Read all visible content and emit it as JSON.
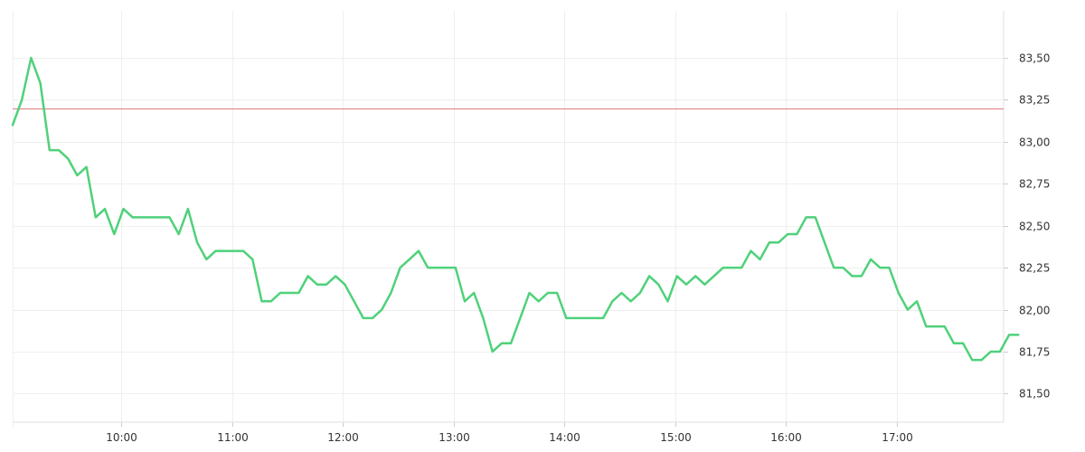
{
  "chart_data": {
    "type": "line",
    "x_labels": [
      "10:00",
      "11:00",
      "12:00",
      "13:00",
      "14:00",
      "15:00",
      "16:00",
      "17:00"
    ],
    "x_label_minutes": [
      600,
      660,
      720,
      780,
      840,
      900,
      960,
      1020
    ],
    "xlim_minutes": [
      541,
      1078
    ],
    "y_ticks": [
      81.5,
      81.75,
      82.0,
      82.25,
      82.5,
      82.75,
      83.0,
      83.25,
      83.5
    ],
    "y_tick_labels": [
      "81,50",
      "81,75",
      "82,00",
      "82,25",
      "82,50",
      "82,75",
      "83,00",
      "83,25",
      "83,50"
    ],
    "ylim": [
      81.33,
      83.78
    ],
    "reference_line": {
      "value": 83.2,
      "color": "#e07a80"
    },
    "grid": true,
    "series": [
      {
        "color": "#4fd17a",
        "points": [
          [
            541,
            83.1
          ],
          [
            546,
            83.25
          ],
          [
            551,
            83.5
          ],
          [
            556,
            83.35
          ],
          [
            561,
            82.95
          ],
          [
            566,
            82.95
          ],
          [
            571,
            82.9
          ],
          [
            576,
            82.8
          ],
          [
            581,
            82.85
          ],
          [
            586,
            82.55
          ],
          [
            591,
            82.6
          ],
          [
            596,
            82.45
          ],
          [
            601,
            82.6
          ],
          [
            606,
            82.55
          ],
          [
            611,
            82.55
          ],
          [
            616,
            82.55
          ],
          [
            621,
            82.55
          ],
          [
            626,
            82.55
          ],
          [
            631,
            82.45
          ],
          [
            636,
            82.6
          ],
          [
            641,
            82.4
          ],
          [
            646,
            82.3
          ],
          [
            651,
            82.35
          ],
          [
            656,
            82.35
          ],
          [
            661,
            82.35
          ],
          [
            666,
            82.35
          ],
          [
            671,
            82.3
          ],
          [
            676,
            82.05
          ],
          [
            681,
            82.05
          ],
          [
            686,
            82.1
          ],
          [
            691,
            82.1
          ],
          [
            696,
            82.1
          ],
          [
            701,
            82.2
          ],
          [
            706,
            82.15
          ],
          [
            711,
            82.15
          ],
          [
            716,
            82.2
          ],
          [
            721,
            82.15
          ],
          [
            726,
            82.05
          ],
          [
            731,
            81.95
          ],
          [
            736,
            81.95
          ],
          [
            741,
            82.0
          ],
          [
            746,
            82.1
          ],
          [
            751,
            82.25
          ],
          [
            756,
            82.3
          ],
          [
            761,
            82.35
          ],
          [
            766,
            82.25
          ],
          [
            771,
            82.25
          ],
          [
            776,
            82.25
          ],
          [
            781,
            82.25
          ],
          [
            786,
            82.05
          ],
          [
            791,
            82.1
          ],
          [
            796,
            81.95
          ],
          [
            801,
            81.75
          ],
          [
            806,
            81.8
          ],
          [
            811,
            81.8
          ],
          [
            816,
            81.95
          ],
          [
            821,
            82.1
          ],
          [
            826,
            82.05
          ],
          [
            831,
            82.1
          ],
          [
            836,
            82.1
          ],
          [
            841,
            81.95
          ],
          [
            846,
            81.95
          ],
          [
            851,
            81.95
          ],
          [
            856,
            81.95
          ],
          [
            861,
            81.95
          ],
          [
            866,
            82.05
          ],
          [
            871,
            82.1
          ],
          [
            876,
            82.05
          ],
          [
            881,
            82.1
          ],
          [
            886,
            82.2
          ],
          [
            891,
            82.15
          ],
          [
            896,
            82.05
          ],
          [
            901,
            82.2
          ],
          [
            906,
            82.15
          ],
          [
            911,
            82.2
          ],
          [
            916,
            82.15
          ],
          [
            921,
            82.2
          ],
          [
            926,
            82.25
          ],
          [
            931,
            82.25
          ],
          [
            936,
            82.25
          ],
          [
            941,
            82.35
          ],
          [
            946,
            82.3
          ],
          [
            951,
            82.4
          ],
          [
            956,
            82.4
          ],
          [
            961,
            82.45
          ],
          [
            966,
            82.45
          ],
          [
            971,
            82.55
          ],
          [
            976,
            82.55
          ],
          [
            981,
            82.4
          ],
          [
            986,
            82.25
          ],
          [
            991,
            82.25
          ],
          [
            996,
            82.2
          ],
          [
            1001,
            82.2
          ],
          [
            1006,
            82.3
          ],
          [
            1011,
            82.25
          ],
          [
            1016,
            82.25
          ],
          [
            1021,
            82.1
          ],
          [
            1026,
            82.0
          ],
          [
            1031,
            82.05
          ],
          [
            1036,
            81.9
          ],
          [
            1041,
            81.9
          ],
          [
            1046,
            81.9
          ],
          [
            1051,
            81.8
          ],
          [
            1056,
            81.8
          ],
          [
            1061,
            81.7
          ],
          [
            1066,
            81.7
          ],
          [
            1071,
            81.75
          ],
          [
            1076,
            81.75
          ],
          [
            1081,
            81.85
          ],
          [
            1086,
            81.85
          ]
        ]
      }
    ]
  }
}
